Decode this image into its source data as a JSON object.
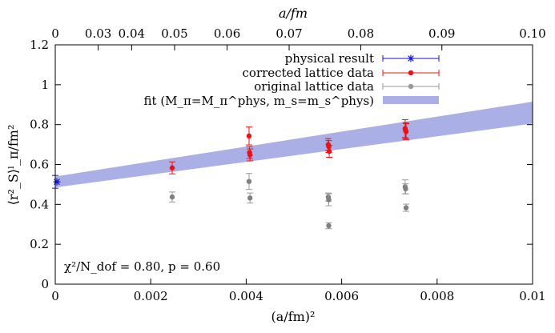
{
  "chart_data": {
    "type": "scatter",
    "xlabel": "(a/fm)²",
    "ylabel": "⟨r²_S⟩ˡ_π/fm²",
    "top_xlabel": "a/fm",
    "xlim": [
      0,
      0.01
    ],
    "ylim": [
      0,
      1.2
    ],
    "x_ticks": [
      "0",
      "0.002",
      "0.004",
      "0.006",
      "0.008",
      "0.01"
    ],
    "x_tick_values": [
      0,
      0.002,
      0.004,
      0.006,
      0.008,
      0.01
    ],
    "y_ticks": [
      "0",
      "0.2",
      "0.4",
      "0.6",
      "0.8",
      "1",
      "1.2"
    ],
    "y_tick_values": [
      0,
      0.2,
      0.4,
      0.6,
      0.8,
      1.0,
      1.2
    ],
    "top_ticks": [
      "0",
      "0.03",
      "0.04",
      "0.05",
      "0.06",
      "0.07",
      "0.08",
      "0.09",
      "0.10"
    ],
    "top_tick_values": [
      0,
      0.03,
      0.04,
      0.05,
      0.06,
      0.07,
      0.08,
      0.09,
      0.1
    ],
    "legend_position": "top-right",
    "annotation": "χ²/N_dof = 0.80, p = 0.60",
    "grid": false,
    "colors": {
      "physical": "#1010dd",
      "corrected": "#ee1111",
      "original": "#808080",
      "band": "#aab0e6"
    },
    "series": [
      {
        "name": "physical result",
        "marker": "star",
        "points": [
          {
            "x": 0.0,
            "y": 0.513,
            "yerr": 0.032,
            "xerr": 6e-05
          }
        ]
      },
      {
        "name": "corrected lattice data",
        "marker": "circle",
        "points": [
          {
            "x": 0.00245,
            "y": 0.583,
            "yerr": 0.03
          },
          {
            "x": 0.00406,
            "y": 0.743,
            "yerr": 0.045
          },
          {
            "x": 0.00407,
            "y": 0.66,
            "yerr": 0.03
          },
          {
            "x": 0.00408,
            "y": 0.648,
            "yerr": 0.03
          },
          {
            "x": 0.00572,
            "y": 0.7,
            "yerr": 0.03
          },
          {
            "x": 0.00573,
            "y": 0.69,
            "yerr": 0.03
          },
          {
            "x": 0.00574,
            "y": 0.666,
            "yerr": 0.03
          },
          {
            "x": 0.00733,
            "y": 0.78,
            "yerr": 0.045
          },
          {
            "x": 0.00734,
            "y": 0.77,
            "yerr": 0.04
          },
          {
            "x": 0.00735,
            "y": 0.765,
            "yerr": 0.04
          }
        ]
      },
      {
        "name": "original lattice data",
        "marker": "circle",
        "points": [
          {
            "x": 0.00245,
            "y": 0.437,
            "yerr": 0.025
          },
          {
            "x": 0.00406,
            "y": 0.515,
            "yerr": 0.04
          },
          {
            "x": 0.00408,
            "y": 0.432,
            "yerr": 0.025
          },
          {
            "x": 0.00572,
            "y": 0.437,
            "yerr": 0.02
          },
          {
            "x": 0.00573,
            "y": 0.423,
            "yerr": 0.03
          },
          {
            "x": 0.00573,
            "y": 0.293,
            "yerr": 0.015
          },
          {
            "x": 0.00733,
            "y": 0.488,
            "yerr": 0.035
          },
          {
            "x": 0.00734,
            "y": 0.478,
            "yerr": 0.025
          },
          {
            "x": 0.00735,
            "y": 0.383,
            "yerr": 0.018
          }
        ]
      },
      {
        "name": "fit (M_π=M_π^phys, m_s=m_s^phys)",
        "type": "band",
        "lower": [
          {
            "x": 0,
            "y": 0.485
          },
          {
            "x": 0.01,
            "y": 0.805
          }
        ],
        "upper": [
          {
            "x": 0,
            "y": 0.54
          },
          {
            "x": 0.01,
            "y": 0.915
          }
        ]
      }
    ]
  }
}
